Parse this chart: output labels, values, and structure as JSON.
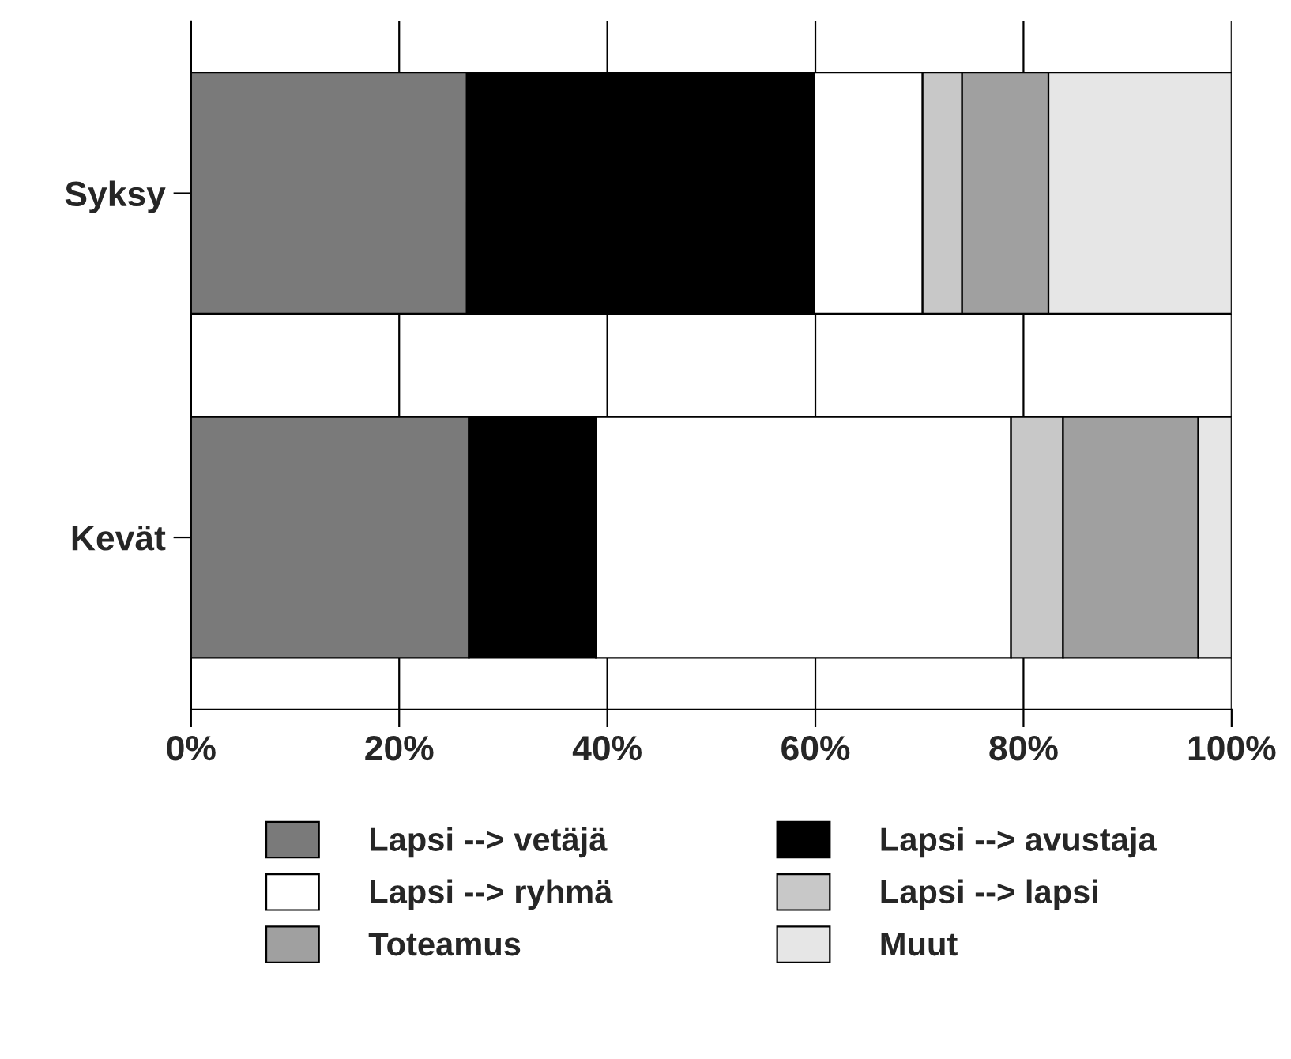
{
  "chart_data": {
    "type": "bar",
    "orientation": "horizontal",
    "stacked": true,
    "categories": [
      "Syksy",
      "Kevät"
    ],
    "series": [
      {
        "name": "Lapsi --> vetäjä",
        "color": "#7a7a7a",
        "values": [
          26.5,
          26.7
        ]
      },
      {
        "name": "Lapsi --> avustaja",
        "color": "#000000",
        "values": [
          33.4,
          12.2
        ]
      },
      {
        "name": "Lapsi --> ryhmä",
        "color": "#ffffff",
        "values": [
          10.4,
          39.9
        ]
      },
      {
        "name": "Lapsi --> lapsi",
        "color": "#c8c8c8",
        "values": [
          3.8,
          5.0
        ]
      },
      {
        "name": "Toteamus",
        "color": "#a0a0a0",
        "values": [
          8.3,
          13.0
        ]
      },
      {
        "name": "Muut",
        "color": "#e6e6e6",
        "values": [
          17.6,
          3.2
        ]
      }
    ],
    "xlim": [
      0,
      100
    ],
    "xticks": [
      {
        "value": 0,
        "label": "0%"
      },
      {
        "value": 20,
        "label": "20%"
      },
      {
        "value": 40,
        "label": "40%"
      },
      {
        "value": 60,
        "label": "60%"
      },
      {
        "value": 80,
        "label": "80%"
      },
      {
        "value": 100,
        "label": "100%"
      }
    ],
    "grid": "x",
    "legend": "bottom"
  }
}
